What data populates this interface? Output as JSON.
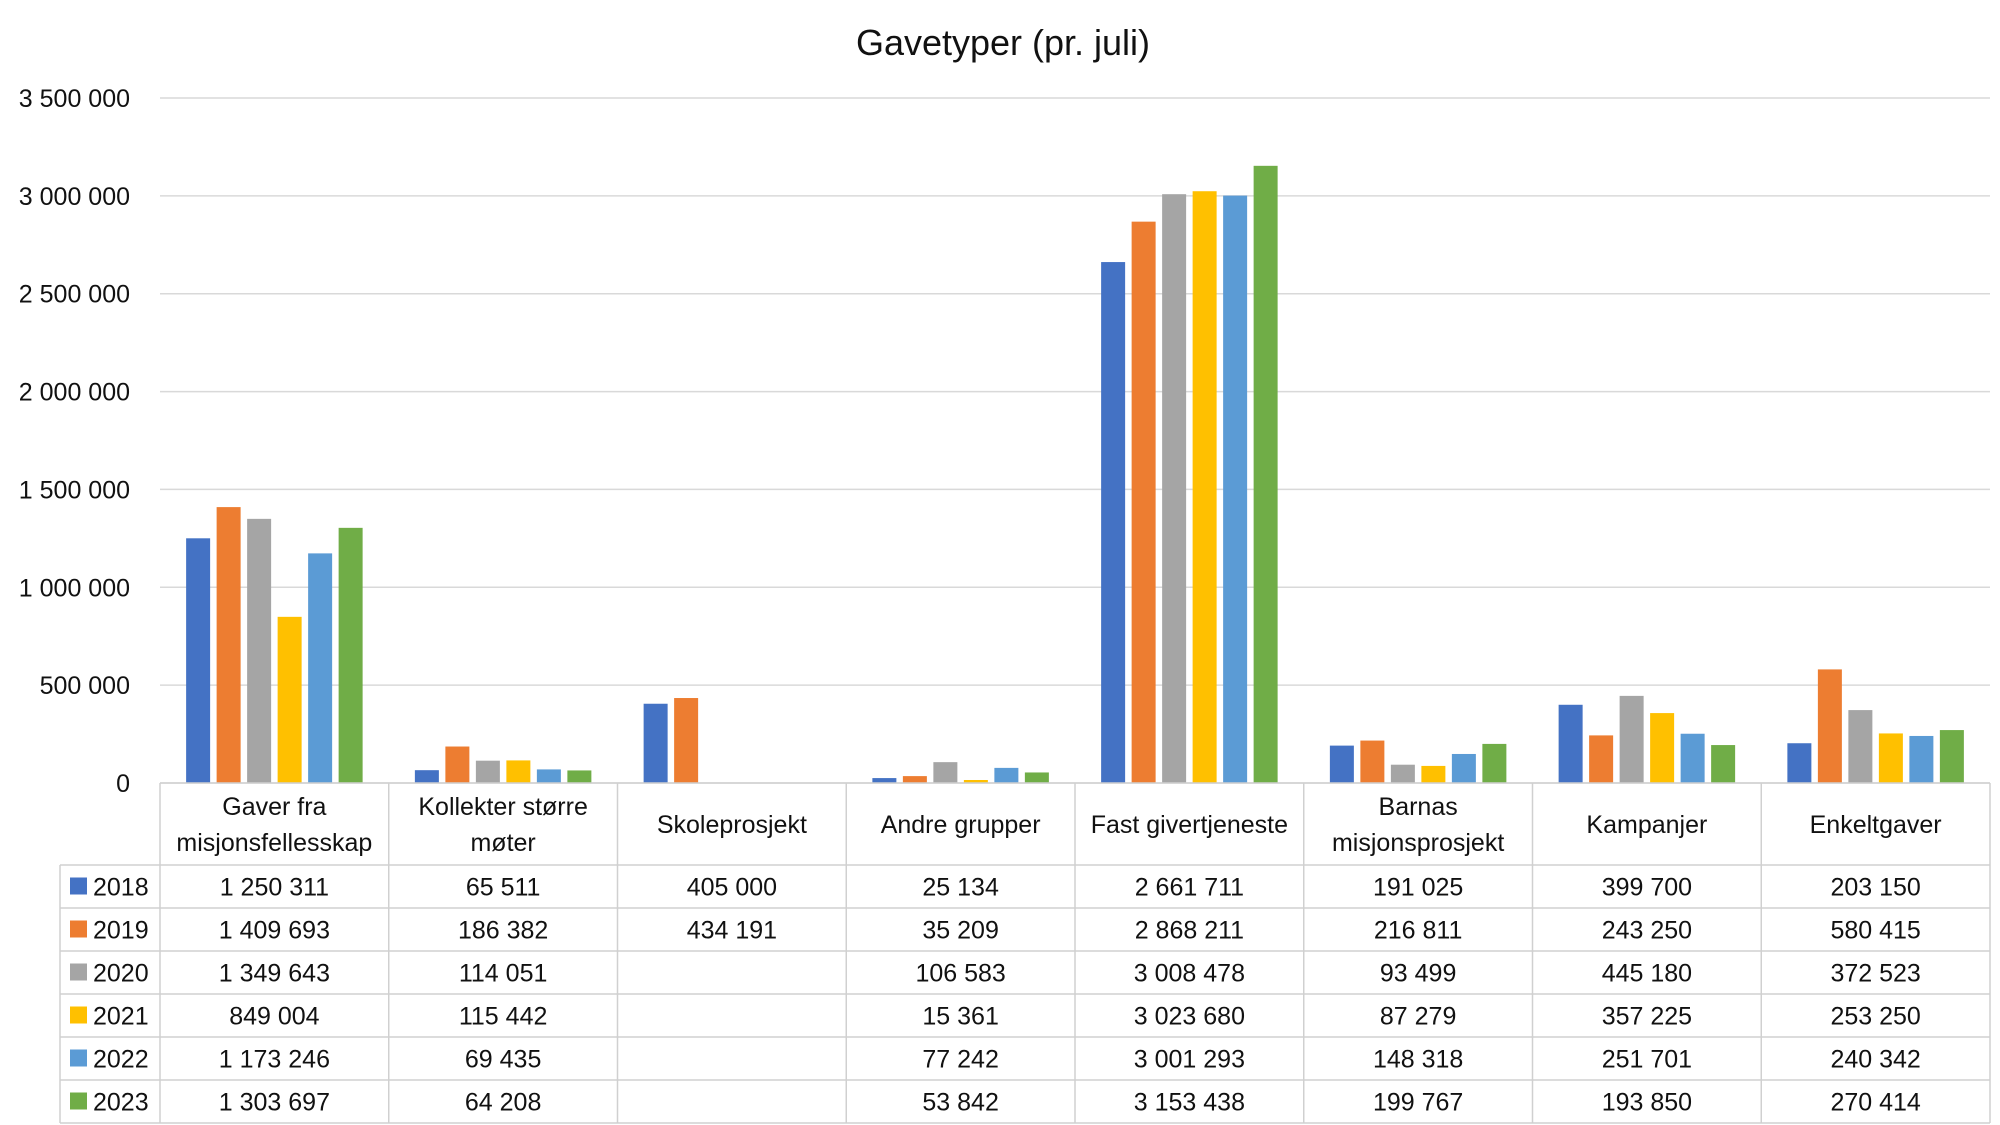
{
  "chart_data": {
    "type": "bar",
    "title": "Gavetyper (pr. juli)",
    "xlabel": "",
    "ylabel": "",
    "ylim": [
      0,
      3500000
    ],
    "yticks": [
      0,
      500000,
      1000000,
      1500000,
      2000000,
      2500000,
      3000000,
      3500000
    ],
    "ytick_labels": [
      "0",
      "500 000",
      "1 000 000",
      "1 500 000",
      "2 000 000",
      "2 500 000",
      "3 000 000",
      "3 500 000"
    ],
    "grid": true,
    "legend": "data-table",
    "categories": [
      [
        "Gaver fra",
        "misjonsfellesskap"
      ],
      [
        "Kollekter større",
        "møter"
      ],
      [
        "Skoleprosjekt"
      ],
      [
        "Andre grupper"
      ],
      [
        "Fast givertjeneste"
      ],
      [
        "Barnas",
        "misjonsprosjekt"
      ],
      [
        "Kampanjer"
      ],
      [
        "Enkeltgaver"
      ]
    ],
    "series": [
      {
        "name": "2018",
        "color": "#4472C4",
        "values": [
          1250311,
          65511,
          405000,
          25134,
          2661711,
          191025,
          399700,
          203150
        ],
        "labels": [
          "1 250 311",
          "65 511",
          "405 000",
          "25 134",
          "2 661 711",
          "191 025",
          "399 700",
          "203 150"
        ]
      },
      {
        "name": "2019",
        "color": "#ED7D31",
        "values": [
          1409693,
          186382,
          434191,
          35209,
          2868211,
          216811,
          243250,
          580415
        ],
        "labels": [
          "1 409 693",
          "186 382",
          "434 191",
          "35 209",
          "2 868 211",
          "216 811",
          "243 250",
          "580 415"
        ]
      },
      {
        "name": "2020",
        "color": "#A5A5A5",
        "values": [
          1349643,
          114051,
          null,
          106583,
          3008478,
          93499,
          445180,
          372523
        ],
        "labels": [
          "1 349 643",
          "114 051",
          "",
          "106 583",
          "3 008 478",
          "93 499",
          "445 180",
          "372 523"
        ]
      },
      {
        "name": "2021",
        "color": "#FFC000",
        "values": [
          849004,
          115442,
          null,
          15361,
          3023680,
          87279,
          357225,
          253250
        ],
        "labels": [
          "849 004",
          "115 442",
          "",
          "15 361",
          "3 023 680",
          "87 279",
          "357 225",
          "253 250"
        ]
      },
      {
        "name": "2022",
        "color": "#5B9BD5",
        "values": [
          1173246,
          69435,
          null,
          77242,
          3001293,
          148318,
          251701,
          240342
        ],
        "labels": [
          "1 173 246",
          "69 435",
          "",
          "77 242",
          "3 001 293",
          "148 318",
          "251 701",
          "240 342"
        ]
      },
      {
        "name": "2023",
        "color": "#70AD47",
        "values": [
          1303697,
          64208,
          null,
          53842,
          3153438,
          199767,
          193850,
          270414
        ],
        "labels": [
          "1 303 697",
          "64 208",
          "",
          "53 842",
          "3 153 438",
          "199 767",
          "193 850",
          "270 414"
        ]
      }
    ]
  }
}
